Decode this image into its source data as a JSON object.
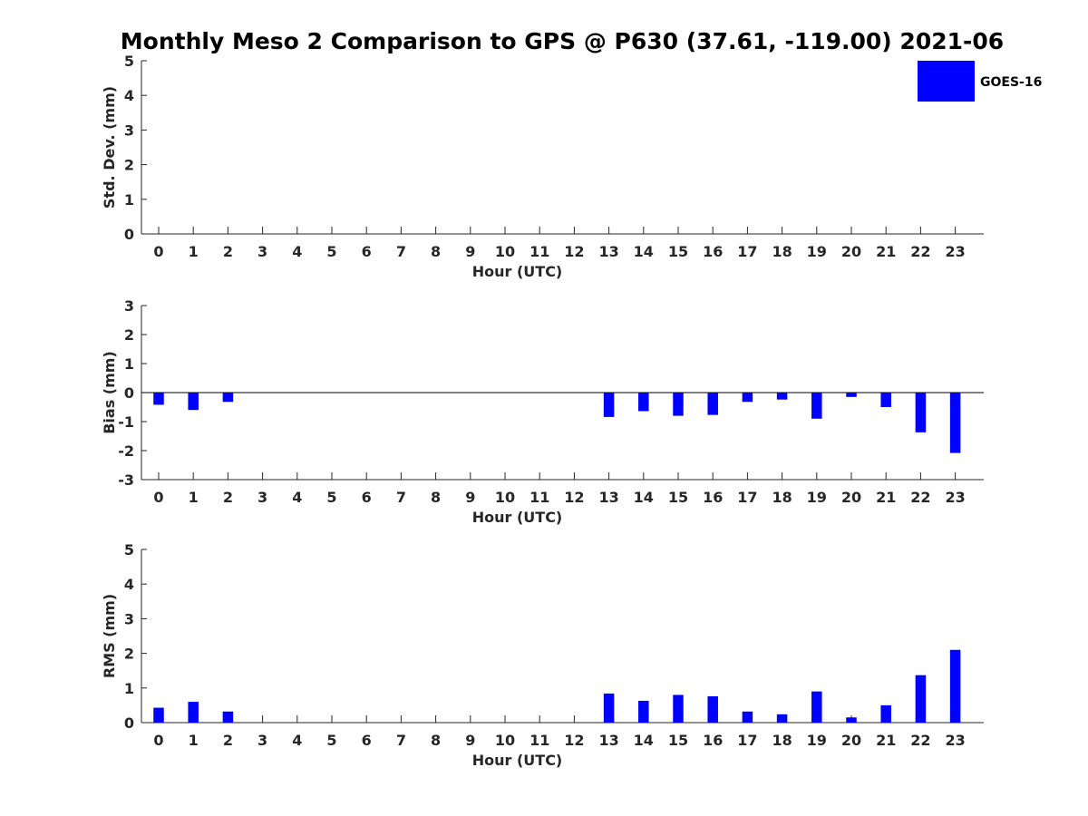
{
  "chart_data": {
    "title": "Monthly Meso 2 Comparison to GPS @ P630 (37.61, -119.00) 2021-06",
    "legend": {
      "label": "GOES-16",
      "color": "#0000ff",
      "placement": "top-right"
    },
    "bar_color": "#0000ff",
    "panels": [
      {
        "id": "std",
        "type": "bar",
        "ylabel": "Std. Dev. (mm)",
        "xlabel": "Hour (UTC)",
        "ylim": [
          0,
          5
        ],
        "yticks": [
          0,
          1,
          2,
          3,
          4,
          5
        ],
        "categories": [
          "0",
          "1",
          "2",
          "3",
          "4",
          "5",
          "6",
          "7",
          "8",
          "9",
          "10",
          "11",
          "12",
          "13",
          "14",
          "15",
          "16",
          "17",
          "18",
          "19",
          "20",
          "21",
          "22",
          "23"
        ],
        "values": [
          0,
          0,
          0,
          0,
          0,
          0,
          0,
          0,
          0,
          0,
          0,
          0,
          0,
          0,
          0,
          0,
          0,
          0,
          0,
          0,
          0,
          0,
          0,
          0
        ],
        "zero_line": false
      },
      {
        "id": "bias",
        "type": "bar",
        "ylabel": "Bias (mm)",
        "xlabel": "Hour (UTC)",
        "ylim": [
          -3,
          3
        ],
        "yticks": [
          -3,
          -2,
          -1,
          0,
          1,
          2,
          3
        ],
        "categories": [
          "0",
          "1",
          "2",
          "3",
          "4",
          "5",
          "6",
          "7",
          "8",
          "9",
          "10",
          "11",
          "12",
          "13",
          "14",
          "15",
          "16",
          "17",
          "18",
          "19",
          "20",
          "21",
          "22",
          "23"
        ],
        "values": [
          -0.42,
          -0.6,
          -0.32,
          0,
          0,
          0,
          0,
          0,
          0,
          0,
          0,
          0,
          0,
          -0.84,
          -0.64,
          -0.8,
          -0.77,
          -0.32,
          -0.24,
          -0.9,
          -0.15,
          -0.5,
          -1.37,
          -2.08
        ],
        "zero_line": true
      },
      {
        "id": "rms",
        "type": "bar",
        "ylabel": "RMS (mm)",
        "xlabel": "Hour (UTC)",
        "ylim": [
          0,
          5
        ],
        "yticks": [
          0,
          1,
          2,
          3,
          4,
          5
        ],
        "categories": [
          "0",
          "1",
          "2",
          "3",
          "4",
          "5",
          "6",
          "7",
          "8",
          "9",
          "10",
          "11",
          "12",
          "13",
          "14",
          "15",
          "16",
          "17",
          "18",
          "19",
          "20",
          "21",
          "22",
          "23"
        ],
        "values": [
          0.43,
          0.6,
          0.32,
          0,
          0,
          0,
          0,
          0,
          0,
          0,
          0,
          0,
          0,
          0.84,
          0.63,
          0.8,
          0.76,
          0.32,
          0.24,
          0.9,
          0.15,
          0.5,
          1.37,
          2.1
        ],
        "zero_line": false
      }
    ]
  }
}
